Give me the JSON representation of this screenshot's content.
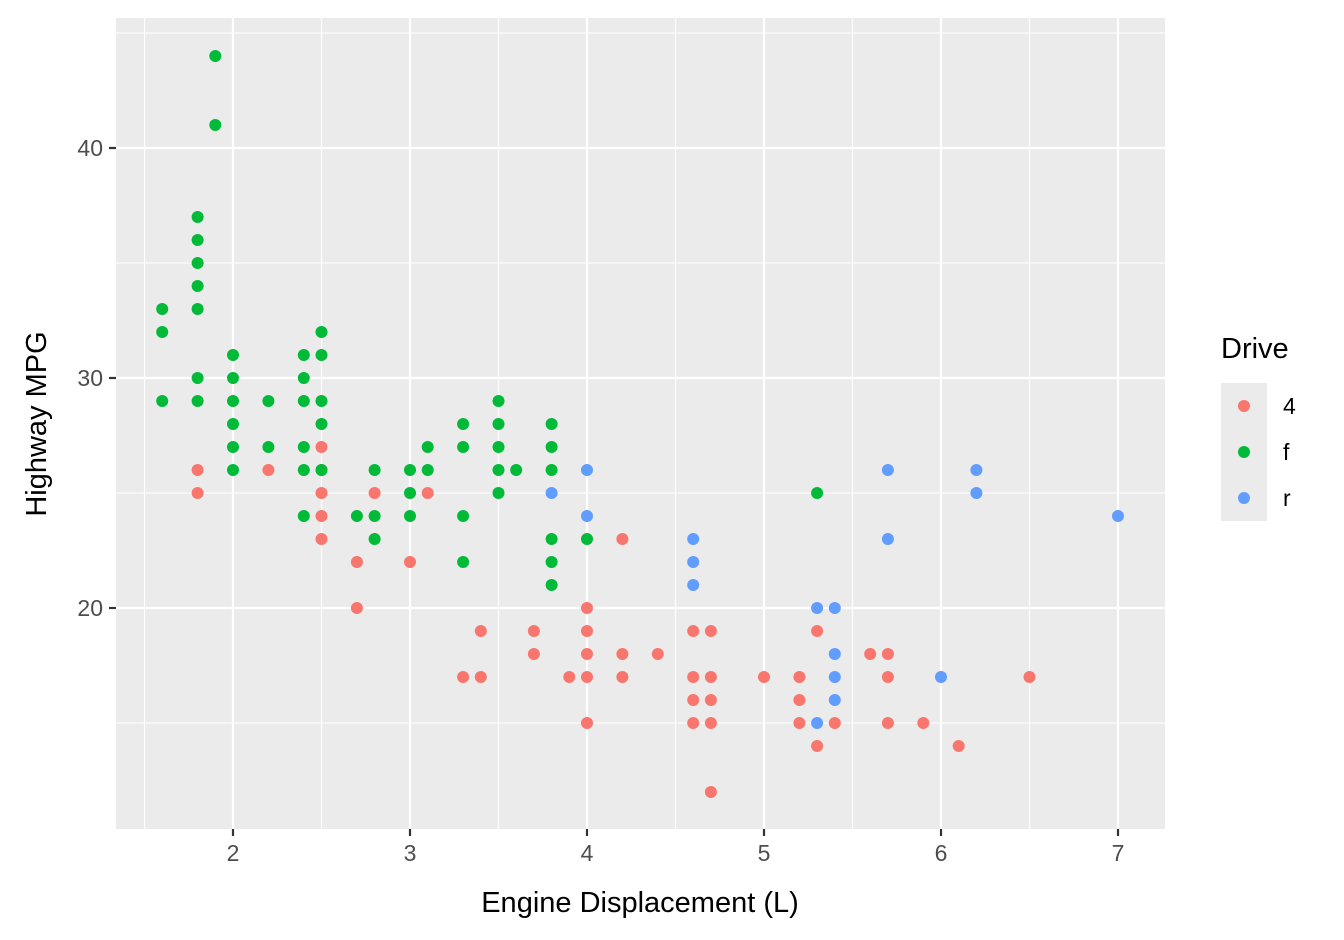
{
  "chart_data": {
    "type": "scatter",
    "title": "",
    "xlabel": "Engine Displacement (L)",
    "ylabel": "Highway MPG",
    "xlim": [
      1.33,
      7.27
    ],
    "ylim": [
      10.4,
      45.6
    ],
    "x_ticks": [
      2,
      3,
      4,
      5,
      6,
      7
    ],
    "y_ticks": [
      20,
      30,
      40
    ],
    "grid": true,
    "legend": {
      "title": "Drive",
      "position": "right",
      "entries": [
        "4",
        "f",
        "r"
      ]
    },
    "series": [
      {
        "name": "4",
        "color": "#F8766D",
        "points": [
          [
            1.8,
            26
          ],
          [
            1.8,
            25
          ],
          [
            2.2,
            26
          ],
          [
            2.5,
            27
          ],
          [
            2.5,
            26
          ],
          [
            2.5,
            25
          ],
          [
            2.5,
            24
          ],
          [
            2.5,
            23
          ],
          [
            2.7,
            22
          ],
          [
            2.7,
            20
          ],
          [
            2.8,
            25
          ],
          [
            3.0,
            22
          ],
          [
            3.1,
            25
          ],
          [
            3.3,
            17
          ],
          [
            3.4,
            19
          ],
          [
            3.4,
            17
          ],
          [
            3.7,
            19
          ],
          [
            3.7,
            18
          ],
          [
            3.9,
            17
          ],
          [
            4.0,
            20
          ],
          [
            4.0,
            19
          ],
          [
            4.0,
            18
          ],
          [
            4.0,
            17
          ],
          [
            4.0,
            15
          ],
          [
            4.2,
            23
          ],
          [
            4.2,
            18
          ],
          [
            4.2,
            17
          ],
          [
            4.4,
            18
          ],
          [
            4.6,
            19
          ],
          [
            4.6,
            17
          ],
          [
            4.6,
            16
          ],
          [
            4.6,
            15
          ],
          [
            4.7,
            19
          ],
          [
            4.7,
            17
          ],
          [
            4.7,
            16
          ],
          [
            4.7,
            15
          ],
          [
            4.7,
            12
          ],
          [
            5.0,
            17
          ],
          [
            5.2,
            17
          ],
          [
            5.2,
            16
          ],
          [
            5.2,
            15
          ],
          [
            5.3,
            19
          ],
          [
            5.3,
            14
          ],
          [
            5.4,
            15
          ],
          [
            5.6,
            18
          ],
          [
            5.7,
            18
          ],
          [
            5.7,
            17
          ],
          [
            5.7,
            15
          ],
          [
            5.9,
            15
          ],
          [
            6.1,
            14
          ],
          [
            6.5,
            17
          ]
        ]
      },
      {
        "name": "f",
        "color": "#00BA38",
        "points": [
          [
            1.6,
            33
          ],
          [
            1.6,
            32
          ],
          [
            1.6,
            29
          ],
          [
            1.8,
            37
          ],
          [
            1.8,
            36
          ],
          [
            1.8,
            35
          ],
          [
            1.8,
            34
          ],
          [
            1.8,
            33
          ],
          [
            1.8,
            30
          ],
          [
            1.8,
            29
          ],
          [
            1.9,
            44
          ],
          [
            1.9,
            41
          ],
          [
            2.0,
            31
          ],
          [
            2.0,
            30
          ],
          [
            2.0,
            29
          ],
          [
            2.0,
            28
          ],
          [
            2.0,
            27
          ],
          [
            2.0,
            26
          ],
          [
            2.2,
            29
          ],
          [
            2.2,
            27
          ],
          [
            2.4,
            31
          ],
          [
            2.4,
            30
          ],
          [
            2.4,
            29
          ],
          [
            2.4,
            27
          ],
          [
            2.4,
            26
          ],
          [
            2.4,
            24
          ],
          [
            2.5,
            32
          ],
          [
            2.5,
            31
          ],
          [
            2.5,
            29
          ],
          [
            2.5,
            28
          ],
          [
            2.5,
            26
          ],
          [
            2.7,
            24
          ],
          [
            2.8,
            26
          ],
          [
            2.8,
            24
          ],
          [
            2.8,
            23
          ],
          [
            3.0,
            26
          ],
          [
            3.0,
            25
          ],
          [
            3.0,
            24
          ],
          [
            3.1,
            27
          ],
          [
            3.1,
            26
          ],
          [
            3.3,
            28
          ],
          [
            3.3,
            27
          ],
          [
            3.3,
            24
          ],
          [
            3.3,
            22
          ],
          [
            3.5,
            29
          ],
          [
            3.5,
            28
          ],
          [
            3.5,
            27
          ],
          [
            3.5,
            26
          ],
          [
            3.5,
            25
          ],
          [
            3.6,
            26
          ],
          [
            3.8,
            28
          ],
          [
            3.8,
            27
          ],
          [
            3.8,
            26
          ],
          [
            3.8,
            23
          ],
          [
            3.8,
            22
          ],
          [
            3.8,
            21
          ],
          [
            4.0,
            23
          ],
          [
            5.3,
            25
          ]
        ]
      },
      {
        "name": "r",
        "color": "#619CFF",
        "points": [
          [
            3.8,
            25
          ],
          [
            4.0,
            26
          ],
          [
            4.0,
            24
          ],
          [
            4.6,
            23
          ],
          [
            4.6,
            22
          ],
          [
            4.6,
            21
          ],
          [
            5.3,
            20
          ],
          [
            5.3,
            15
          ],
          [
            5.4,
            20
          ],
          [
            5.4,
            18
          ],
          [
            5.4,
            17
          ],
          [
            5.4,
            16
          ],
          [
            5.7,
            26
          ],
          [
            5.7,
            23
          ],
          [
            6.0,
            17
          ],
          [
            6.2,
            26
          ],
          [
            6.2,
            25
          ],
          [
            7.0,
            24
          ]
        ]
      }
    ]
  }
}
